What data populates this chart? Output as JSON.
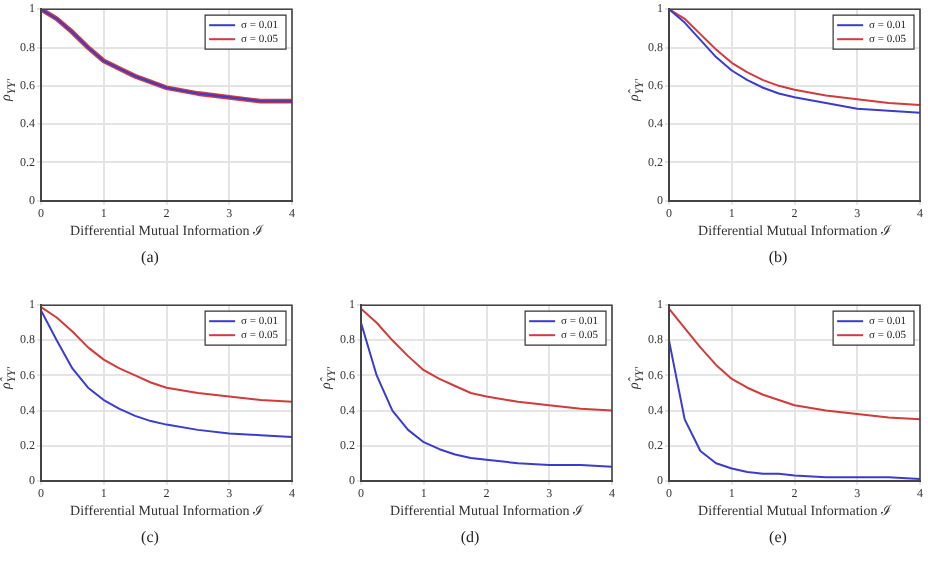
{
  "chart_data": [
    {
      "type": "line",
      "xlabel": "Differential Mutual Information ℐ",
      "ylabel": "ρ$_{YY'}$",
      "annotations": [
        "(a)"
      ],
      "x": [
        0,
        0.25,
        0.5,
        0.75,
        1,
        1.25,
        1.5,
        1.75,
        2,
        2.5,
        3,
        3.5,
        4
      ],
      "xlim": [
        0,
        4
      ],
      "xticks": [
        0,
        1,
        2,
        3,
        4
      ],
      "ylim": [
        0,
        1
      ],
      "yticks": [
        0,
        0.2,
        0.4,
        0.6,
        0.8,
        1
      ],
      "grid": true,
      "legend": "top right",
      "marker": "none",
      "series": [
        {
          "name": "σ = 0.01",
          "color": "#3b3bd0",
          "values": [
            1,
            0.95,
            0.88,
            0.8,
            0.73,
            0.69,
            0.65,
            0.62,
            0.59,
            0.56,
            0.54,
            0.52,
            0.52
          ]
        },
        {
          "name": "σ = 0.05",
          "color": "#d03b3b",
          "values": [
            1,
            0.95,
            0.88,
            0.8,
            0.73,
            0.69,
            0.65,
            0.62,
            0.59,
            0.56,
            0.54,
            0.52,
            0.52
          ]
        }
      ]
    },
    {
      "type": "line",
      "xlabel": "Differential Mutual Information ℐ",
      "ylabel": "ρ̂$_{YY'}$",
      "annotations": [
        "(b)"
      ],
      "x": [
        0,
        0.25,
        0.5,
        0.75,
        1,
        1.25,
        1.5,
        1.75,
        2,
        2.5,
        3,
        3.5,
        4
      ],
      "xlim": [
        0,
        4
      ],
      "xticks": [
        0,
        1,
        2,
        3,
        4
      ],
      "ylim": [
        0,
        1
      ],
      "yticks": [
        0,
        0.2,
        0.4,
        0.6,
        0.8,
        1
      ],
      "grid": true,
      "legend": "top right",
      "marker": "none",
      "series": [
        {
          "name": "σ = 0.01",
          "color": "#3b3bd0",
          "values": [
            1,
            0.93,
            0.84,
            0.75,
            0.68,
            0.63,
            0.59,
            0.56,
            0.54,
            0.51,
            0.48,
            0.47,
            0.46
          ]
        },
        {
          "name": "σ = 0.05",
          "color": "#d03b3b",
          "values": [
            1,
            0.95,
            0.87,
            0.79,
            0.72,
            0.67,
            0.63,
            0.6,
            0.58,
            0.55,
            0.53,
            0.51,
            0.5
          ]
        }
      ]
    },
    {
      "type": "line",
      "xlabel": "Differential Mutual Information ℐ",
      "ylabel": "ρ̂$_{YY'}$",
      "annotations": [
        "(c)"
      ],
      "x": [
        0,
        0.25,
        0.5,
        0.75,
        1,
        1.25,
        1.5,
        1.75,
        2,
        2.5,
        3,
        3.5,
        4
      ],
      "xlim": [
        0,
        4
      ],
      "xticks": [
        0,
        1,
        2,
        3,
        4
      ],
      "ylim": [
        0,
        1
      ],
      "yticks": [
        0,
        0.2,
        0.4,
        0.6,
        0.8,
        1
      ],
      "grid": true,
      "legend": "top right",
      "marker": "none",
      "series": [
        {
          "name": "σ = 0.01",
          "color": "#3b3bd0",
          "values": [
            0.97,
            0.8,
            0.64,
            0.53,
            0.46,
            0.41,
            0.37,
            0.34,
            0.32,
            0.29,
            0.27,
            0.26,
            0.25
          ]
        },
        {
          "name": "σ = 0.05",
          "color": "#d03b3b",
          "values": [
            0.99,
            0.93,
            0.85,
            0.76,
            0.69,
            0.64,
            0.6,
            0.56,
            0.53,
            0.5,
            0.48,
            0.46,
            0.45
          ]
        }
      ]
    },
    {
      "type": "line",
      "xlabel": "Differential Mutual Information ℐ",
      "ylabel": "ρ̂$_{YY'}$",
      "annotations": [
        "(d)"
      ],
      "x": [
        0,
        0.25,
        0.5,
        0.75,
        1,
        1.25,
        1.5,
        1.75,
        2,
        2.5,
        3,
        3.5,
        4
      ],
      "xlim": [
        0,
        4
      ],
      "xticks": [
        0,
        1,
        2,
        3,
        4
      ],
      "ylim": [
        0,
        1
      ],
      "yticks": [
        0,
        0.2,
        0.4,
        0.6,
        0.8,
        1
      ],
      "grid": true,
      "legend": "top right",
      "marker": "none",
      "series": [
        {
          "name": "σ = 0.01",
          "color": "#3b3bd0",
          "values": [
            0.9,
            0.6,
            0.4,
            0.29,
            0.22,
            0.18,
            0.15,
            0.13,
            0.12,
            0.1,
            0.09,
            0.09,
            0.08
          ]
        },
        {
          "name": "σ = 0.05",
          "color": "#d03b3b",
          "values": [
            0.98,
            0.9,
            0.8,
            0.71,
            0.63,
            0.58,
            0.54,
            0.5,
            0.48,
            0.45,
            0.43,
            0.41,
            0.4
          ]
        }
      ]
    },
    {
      "type": "line",
      "xlabel": "Differential Mutual Information ℐ",
      "ylabel": "ρ̂$_{YY'}$",
      "annotations": [
        "(e)"
      ],
      "x": [
        0,
        0.25,
        0.5,
        0.75,
        1,
        1.25,
        1.5,
        1.75,
        2,
        2.5,
        3,
        3.5,
        4
      ],
      "xlim": [
        0,
        4
      ],
      "xticks": [
        0,
        1,
        2,
        3,
        4
      ],
      "ylim": [
        0,
        1
      ],
      "yticks": [
        0,
        0.2,
        0.4,
        0.6,
        0.8,
        1
      ],
      "grid": true,
      "legend": "top right",
      "marker": "none",
      "series": [
        {
          "name": "σ = 0.01",
          "color": "#3b3bd0",
          "values": [
            0.8,
            0.35,
            0.17,
            0.1,
            0.07,
            0.05,
            0.04,
            0.04,
            0.03,
            0.02,
            0.02,
            0.02,
            0.01
          ]
        },
        {
          "name": "σ = 0.05",
          "color": "#d03b3b",
          "values": [
            0.98,
            0.87,
            0.76,
            0.66,
            0.58,
            0.53,
            0.49,
            0.46,
            0.43,
            0.4,
            0.38,
            0.36,
            0.35
          ]
        }
      ]
    }
  ]
}
